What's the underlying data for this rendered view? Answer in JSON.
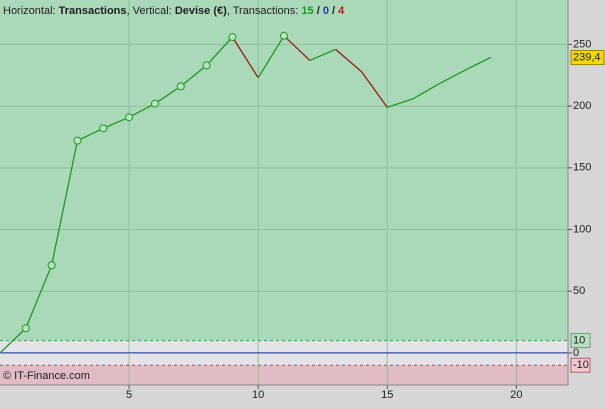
{
  "header": {
    "horizontal_label": "Horizontal:",
    "horizontal": "Transactions",
    "vertical_label": ", Vertical:",
    "vertical": "Devise (€)",
    "count_label": ", Transactions:",
    "wins": 15,
    "neutral": 0,
    "losses": 4,
    "separator": "/"
  },
  "footer": "© IT-Finance.com",
  "chart_data": {
    "type": "line",
    "x": [
      0,
      1,
      2,
      3,
      4,
      5,
      6,
      7,
      8,
      9,
      10,
      11,
      12,
      13,
      14,
      15,
      16,
      17,
      18,
      19
    ],
    "series": [
      {
        "color": "#1e9a1e",
        "down_color": "#a01818",
        "values": [
          0,
          20,
          71,
          172,
          182,
          191,
          202,
          216,
          233,
          256,
          223,
          257,
          237,
          246,
          228,
          199,
          206,
          218,
          229,
          239.4
        ],
        "value_labels": [
          null,
          null,
          null,
          null,
          null,
          null,
          null,
          null,
          null,
          null,
          null,
          null,
          null,
          null,
          null,
          null,
          null,
          null,
          null,
          "239,4"
        ]
      }
    ],
    "xlim": [
      0,
      22
    ],
    "ylim": [
      -26,
      286
    ],
    "xticks": [
      5,
      10,
      15,
      20
    ],
    "yticks": [
      0,
      50,
      100,
      150,
      200,
      250
    ],
    "upper_threshold": 10,
    "lower_threshold": -10,
    "grid": true
  }
}
